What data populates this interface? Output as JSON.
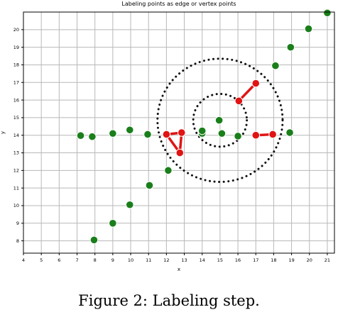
{
  "caption": "Figure 2: Labeling step.",
  "chart_data": {
    "type": "scatter",
    "title": "Labeling points as edge or vertex points",
    "xlabel": "x",
    "ylabel": "y",
    "xlim": [
      4,
      21.4
    ],
    "ylim": [
      7.3,
      21
    ],
    "xticks": [
      4,
      5,
      6,
      7,
      8,
      9,
      10,
      11,
      12,
      13,
      14,
      15,
      16,
      17,
      18,
      19,
      20,
      21
    ],
    "yticks": [
      8,
      9,
      10,
      11,
      12,
      13,
      14,
      15,
      16,
      17,
      18,
      19,
      20
    ],
    "grid": true,
    "colors": {
      "point": "#1a7f1a",
      "labeled": "#e01414",
      "circle": "#111111",
      "grid": "#b8b8b8"
    },
    "green_points": [
      [
        7.2,
        13.98
      ],
      [
        7.85,
        13.92
      ],
      [
        9.0,
        14.1
      ],
      [
        9.95,
        14.3
      ],
      [
        10.95,
        14.05
      ],
      [
        14.0,
        14.1
      ],
      [
        15.1,
        14.1
      ],
      [
        16.0,
        13.95
      ],
      [
        18.9,
        14.15
      ],
      [
        7.95,
        8.05
      ],
      [
        9.0,
        9.0
      ],
      [
        9.95,
        10.05
      ],
      [
        11.05,
        11.15
      ],
      [
        12.1,
        12.0
      ],
      [
        18.1,
        17.95
      ],
      [
        18.95,
        19.0
      ],
      [
        19.95,
        20.05
      ],
      [
        21.0,
        20.95
      ],
      [
        14.0,
        14.25
      ],
      [
        14.95,
        14.85
      ]
    ],
    "red_groups": [
      [
        [
          12.0,
          14.05
        ],
        [
          12.85,
          14.15
        ],
        [
          12.75,
          13.0
        ],
        [
          12.0,
          14.05
        ]
      ],
      [
        [
          16.05,
          15.95
        ],
        [
          17.0,
          16.95
        ]
      ],
      [
        [
          17.0,
          14.0
        ],
        [
          17.95,
          14.05
        ]
      ]
    ],
    "circles": [
      {
        "cx": 15.0,
        "cy": 14.85,
        "r": 3.5
      },
      {
        "cx": 15.0,
        "cy": 14.85,
        "r": 1.5
      }
    ]
  }
}
